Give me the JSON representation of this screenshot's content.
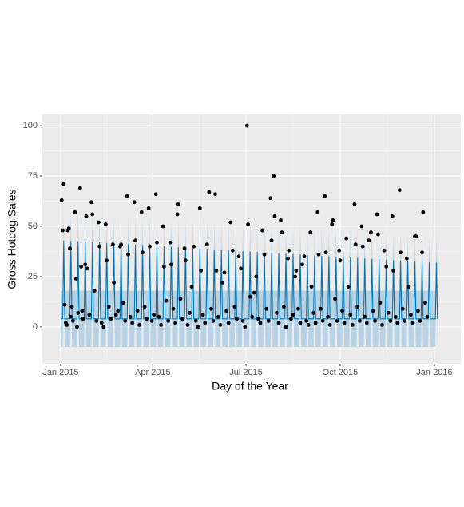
{
  "chart_data": {
    "type": "scatter",
    "x_label": "Day of the Year",
    "y_label": "Gross Hotdog Sales",
    "xlim": [
      -17.9,
      390.8
    ],
    "ylim": [
      -18.3,
      105.6
    ],
    "xticks": [
      {
        "value": 0,
        "label": "Jan 2015"
      },
      {
        "value": 90,
        "label": "Apr 2015"
      },
      {
        "value": 181,
        "label": "Jul 2015"
      },
      {
        "value": 273,
        "label": "Oct 2015"
      },
      {
        "value": 365,
        "label": "Jan 2016"
      }
    ],
    "yticks": [
      0,
      25,
      50,
      75,
      100
    ],
    "grid": true,
    "color": "#000000",
    "x": [
      1,
      2,
      3,
      4,
      5,
      6,
      7,
      8,
      9,
      10,
      11,
      12,
      14,
      15,
      16,
      17,
      19,
      20,
      21,
      22,
      24,
      25,
      26,
      28,
      30,
      31,
      33,
      35,
      37,
      38,
      40,
      42,
      44,
      45,
      47,
      49,
      51,
      52,
      54,
      56,
      58,
      59,
      61,
      63,
      65,
      66,
      68,
      70,
      72,
      73,
      75,
      77,
      79,
      80,
      82,
      84,
      86,
      87,
      89,
      91,
      93,
      94,
      96,
      98,
      100,
      101,
      103,
      105,
      107,
      108,
      110,
      112,
      114,
      115,
      117,
      119,
      121,
      122,
      124,
      126,
      128,
      130,
      132,
      134,
      136,
      137,
      139,
      141,
      143,
      145,
      147,
      149,
      151,
      152,
      154,
      156,
      158,
      160,
      162,
      164,
      166,
      168,
      170,
      172,
      174,
      176,
      178,
      180,
      182,
      183,
      185,
      187,
      189,
      191,
      193,
      195,
      197,
      199,
      201,
      203,
      205,
      206,
      208,
      209,
      211,
      213,
      215,
      216,
      218,
      220,
      222,
      223,
      225,
      227,
      229,
      230,
      232,
      234,
      236,
      238,
      240,
      242,
      244,
      245,
      247,
      249,
      251,
      252,
      254,
      256,
      258,
      259,
      261,
      263,
      265,
      266,
      268,
      270,
      272,
      273,
      275,
      277,
      279,
      281,
      283,
      285,
      287,
      288,
      290,
      292,
      294,
      295,
      297,
      299,
      301,
      303,
      305,
      307,
      309,
      310,
      312,
      314,
      316,
      318,
      320,
      322,
      324,
      325,
      327,
      329,
      331,
      332,
      334,
      336,
      338,
      340,
      342,
      344,
      346,
      347,
      349,
      351,
      353,
      354,
      356,
      358
    ],
    "values": [
      63,
      48,
      71,
      11,
      2,
      1,
      48,
      49,
      39,
      5,
      10,
      3,
      57,
      24,
      0,
      7,
      69,
      30,
      8,
      4,
      31,
      55,
      29,
      6,
      62,
      56,
      18,
      3,
      52,
      40,
      2,
      0,
      51,
      33,
      10,
      4,
      41,
      22,
      6,
      8,
      40,
      41,
      12,
      3,
      65,
      36,
      5,
      2,
      62,
      43,
      8,
      1,
      57,
      37,
      10,
      4,
      59,
      40,
      3,
      6,
      66,
      42,
      5,
      1,
      50,
      30,
      13,
      3,
      42,
      31,
      9,
      2,
      56,
      61,
      14,
      4,
      39,
      33,
      1,
      7,
      20,
      40,
      3,
      0,
      59,
      28,
      6,
      2,
      41,
      67,
      9,
      3,
      66,
      28,
      5,
      1,
      22,
      27,
      8,
      2,
      52,
      38,
      10,
      4,
      35,
      29,
      3,
      0,
      100,
      51,
      15,
      5,
      17,
      25,
      4,
      2,
      48,
      36,
      9,
      3,
      64,
      43,
      75,
      55,
      7,
      2,
      53,
      47,
      10,
      0,
      34,
      38,
      4,
      6,
      25,
      28,
      9,
      2,
      31,
      35,
      3,
      1,
      47,
      20,
      7,
      2,
      57,
      36,
      9,
      3,
      65,
      37,
      5,
      1,
      51,
      53,
      14,
      3,
      38,
      33,
      8,
      2,
      44,
      20,
      6,
      1,
      61,
      41,
      10,
      3,
      50,
      40,
      5,
      2,
      43,
      47,
      8,
      3,
      56,
      46,
      12,
      1,
      38,
      30,
      7,
      3,
      55,
      28,
      5,
      2,
      68,
      37,
      9,
      3,
      34,
      20,
      6,
      2,
      45,
      45,
      8,
      3,
      37,
      57,
      12,
      5
    ],
    "forecast": {
      "color": "#0072B2",
      "band_color": "#a6cbe0",
      "x": [
        0,
        2,
        3,
        4,
        9,
        10,
        11,
        16,
        17,
        18,
        23,
        24,
        25,
        30,
        31,
        32,
        37,
        38,
        39,
        44,
        45,
        46,
        51,
        52,
        53,
        58,
        59,
        60,
        65,
        66,
        67,
        72,
        73,
        74,
        79,
        80,
        81,
        86,
        87,
        88,
        93,
        94,
        95,
        100,
        101,
        102,
        107,
        108,
        109,
        114,
        115,
        116,
        121,
        122,
        123,
        128,
        129,
        130,
        135,
        136,
        137,
        142,
        143,
        144,
        149,
        150,
        151,
        156,
        157,
        158,
        163,
        164,
        165,
        170,
        171,
        172,
        177,
        178,
        179,
        184,
        185,
        186,
        191,
        192,
        193,
        198,
        199,
        200,
        205,
        206,
        207,
        212,
        213,
        214,
        219,
        220,
        221,
        226,
        227,
        228,
        233,
        234,
        235,
        240,
        241,
        242,
        247,
        248,
        249,
        254,
        255,
        256,
        261,
        262,
        263,
        268,
        269,
        270,
        275,
        276,
        277,
        282,
        283,
        284,
        289,
        290,
        291,
        296,
        297,
        298,
        303,
        304,
        305,
        310,
        311,
        312,
        317,
        318,
        319,
        324,
        325,
        326,
        331,
        332,
        333,
        338,
        339,
        340,
        345,
        346,
        347,
        352,
        353,
        354,
        359,
        360,
        361,
        366,
        367,
        368
      ],
      "values": [
        4,
        4,
        43,
        4,
        4,
        42.8,
        4,
        4,
        42.6,
        4,
        4,
        42.4,
        4,
        4,
        42.2,
        4,
        4,
        42,
        4,
        4,
        41.7,
        4,
        4,
        41.5,
        4,
        4,
        41.3,
        4,
        4,
        41.1,
        4,
        4,
        40.9,
        4,
        4,
        40.7,
        4,
        4,
        40.5,
        4,
        4,
        40.3,
        4,
        4,
        40,
        4,
        4,
        39.8,
        4,
        4,
        39.6,
        4,
        4,
        39.4,
        4,
        4,
        39.2,
        4,
        4,
        39,
        4,
        4,
        38.8,
        4,
        4,
        38.5,
        4,
        4,
        38.3,
        4,
        4,
        38.1,
        4,
        4,
        37.9,
        4,
        4,
        37.7,
        4,
        4,
        37.5,
        4,
        4,
        37.3,
        4,
        4,
        37,
        4,
        4,
        36.8,
        4,
        4,
        36.6,
        4,
        4,
        36.4,
        4,
        4,
        36.2,
        4,
        4,
        36,
        4,
        4,
        35.8,
        4,
        4,
        35.5,
        4,
        4,
        35.3,
        4,
        4,
        35.1,
        4,
        4,
        34.9,
        4,
        4,
        34.7,
        4,
        4,
        34.5,
        4,
        4,
        34.3,
        4,
        4,
        34,
        4,
        4,
        33.8,
        4,
        4,
        33.6,
        4,
        4,
        33.4,
        4,
        4,
        33.2,
        4,
        4,
        33,
        4,
        4,
        32.8,
        4,
        4,
        32.5,
        4,
        4,
        32.3,
        4,
        4,
        32.1,
        4,
        4,
        32,
        4
      ],
      "lower": [
        -10,
        -10,
        29,
        -10,
        -10,
        28.8,
        -10,
        -10,
        28.6,
        -10,
        -10,
        28.4,
        -10,
        -10,
        28.2,
        -10,
        -10,
        28,
        -10,
        -10,
        27.7,
        -10,
        -10,
        27.5,
        -10,
        -10,
        27.3,
        -10,
        -10,
        27.1,
        -10,
        -10,
        26.9,
        -10,
        -10,
        26.7,
        -10,
        -10,
        26.5,
        -10,
        -10,
        26.3,
        -10,
        -10,
        26,
        -10,
        -10,
        25.8,
        -10,
        -10,
        25.6,
        -10,
        -10,
        25.4,
        -10,
        -10,
        25.2,
        -10,
        -10,
        25,
        -10,
        -10,
        24.8,
        -10,
        -10,
        24.5,
        -10,
        -10,
        24.3,
        -10,
        -10,
        24.1,
        -10,
        -10,
        23.9,
        -10,
        -10,
        23.7,
        -10,
        -10,
        23.5,
        -10,
        -10,
        23.3,
        -10,
        -10,
        23,
        -10,
        -10,
        22.8,
        -10,
        -10,
        22.6,
        -10,
        -10,
        22.4,
        -10,
        -10,
        22.2,
        -10,
        -10,
        22,
        -10,
        -10,
        21.8,
        -10,
        -10,
        21.5,
        -10,
        -10,
        21.3,
        -10,
        -10,
        21.1,
        -10,
        -10,
        20.9,
        -10,
        -10,
        20.7,
        -10,
        -10,
        20.5,
        -10,
        -10,
        20.3,
        -10,
        -10,
        20,
        -10,
        -10,
        19.8,
        -10,
        -10,
        19.6,
        -10,
        -10,
        19.4,
        -10,
        -10,
        19.2,
        -10,
        -10,
        19,
        -10,
        -10,
        18.8,
        -10,
        -10,
        18.5,
        -10,
        -10,
        18.3,
        -10,
        -10,
        18.1,
        -10,
        -10,
        18,
        -10
      ],
      "upper": [
        18,
        18,
        57,
        18,
        18,
        56.8,
        18,
        18,
        56.6,
        18,
        18,
        56.4,
        18,
        18,
        56.2,
        18,
        18,
        56,
        18,
        18,
        55.7,
        18,
        18,
        55.5,
        18,
        18,
        55.3,
        18,
        18,
        55.1,
        18,
        18,
        54.9,
        18,
        18,
        54.7,
        18,
        18,
        54.5,
        18,
        18,
        54.3,
        18,
        18,
        54,
        18,
        18,
        53.8,
        18,
        18,
        53.6,
        18,
        18,
        53.4,
        18,
        18,
        53.2,
        18,
        18,
        53,
        18,
        18,
        52.8,
        18,
        18,
        52.5,
        18,
        18,
        52.3,
        18,
        18,
        52.1,
        18,
        18,
        51.9,
        18,
        18,
        51.7,
        18,
        18,
        51.5,
        18,
        18,
        51.3,
        18,
        18,
        51,
        18,
        18,
        50.8,
        18,
        18,
        50.6,
        18,
        18,
        50.4,
        18,
        18,
        50.2,
        18,
        18,
        50,
        18,
        18,
        49.8,
        18,
        18,
        49.5,
        18,
        18,
        49.3,
        18,
        18,
        49.1,
        18,
        18,
        48.9,
        18,
        18,
        48.7,
        18,
        18,
        48.5,
        18,
        18,
        48.3,
        18,
        18,
        48,
        18,
        18,
        47.8,
        18,
        18,
        47.6,
        18,
        18,
        47.4,
        18,
        18,
        47.2,
        18,
        18,
        47,
        18,
        18,
        46.8,
        18,
        18,
        46.5,
        18,
        18,
        46.3,
        18,
        18,
        46.1,
        18,
        18,
        46,
        18
      ]
    }
  }
}
